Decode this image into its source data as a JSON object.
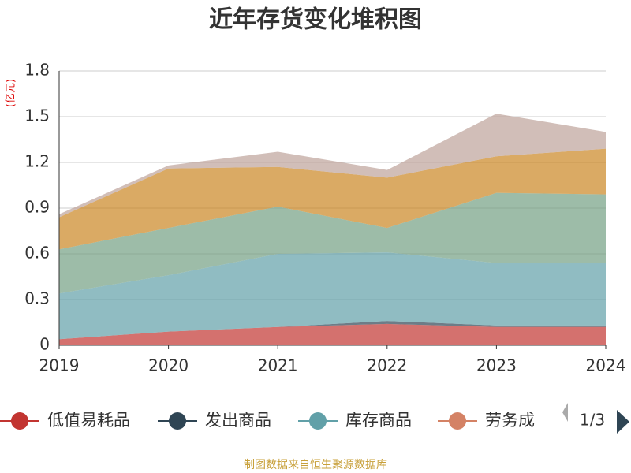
{
  "chart_data": {
    "type": "stacked-area",
    "title": "近年存货变化堆积图",
    "y_unit": "(亿元)",
    "categories": [
      "2019",
      "2020",
      "2021",
      "2022",
      "2023",
      "2024"
    ],
    "ylim": [
      0,
      1.8
    ],
    "yticks": [
      0,
      0.3,
      0.6,
      0.9,
      1.2,
      1.5,
      1.8
    ],
    "grid": true,
    "series": [
      {
        "name": "低值易耗品",
        "color": "#c23531",
        "values": [
          0.04,
          0.09,
          0.12,
          0.14,
          0.12,
          0.12
        ]
      },
      {
        "name": "发出商品",
        "color": "#2f4554",
        "values": [
          0,
          0,
          0,
          0.02,
          0.01,
          0.01
        ]
      },
      {
        "name": "库存商品",
        "color": "#61a0a8",
        "values": [
          0.3,
          0.37,
          0.48,
          0.45,
          0.41,
          0.41
        ]
      },
      {
        "name": "劳务成",
        "color": "#d48265",
        "values": [
          0,
          0,
          0,
          0,
          0,
          0
        ]
      },
      {
        "color": "#91c7ae",
        "values": [
          0,
          0,
          0,
          0,
          0,
          0
        ]
      },
      {
        "color": "#749f83",
        "values": [
          0.29,
          0.31,
          0.31,
          0.16,
          0.46,
          0.45
        ]
      },
      {
        "color": "#ca8622",
        "values": [
          0.21,
          0.39,
          0.26,
          0.33,
          0.24,
          0.3
        ]
      },
      {
        "color": "#bda29a",
        "values": [
          0.02,
          0.02,
          0.1,
          0.05,
          0.28,
          0.11
        ]
      }
    ],
    "legend_page": "1/3",
    "source": "制图数据来自恒生聚源数据库"
  }
}
